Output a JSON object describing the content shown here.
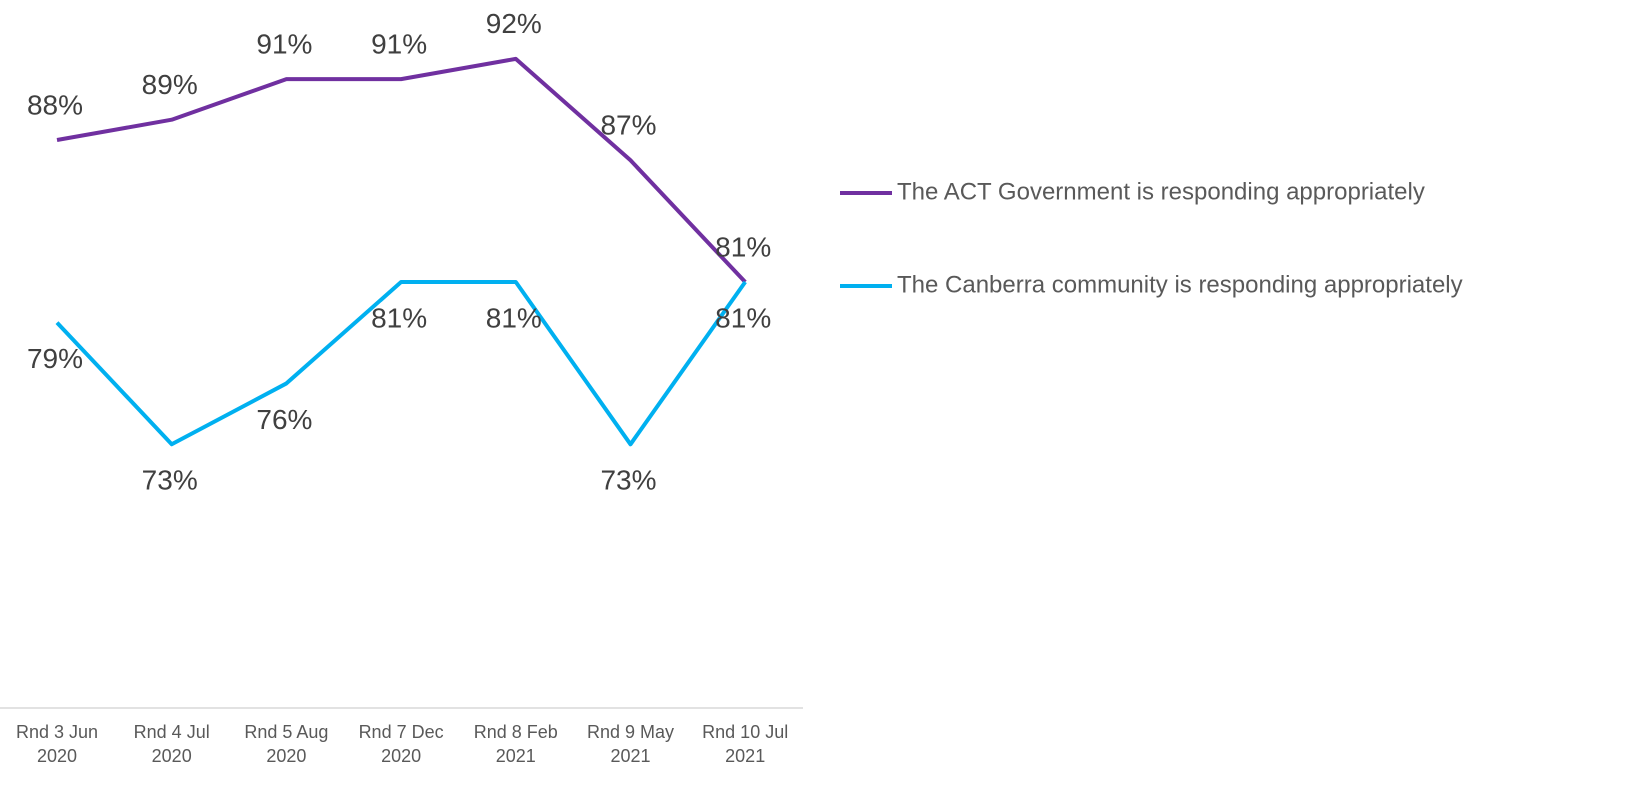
{
  "chart_data": {
    "type": "line",
    "categories": [
      "Rnd 3 Jun 2020",
      "Rnd 4 Jul 2020",
      "Rnd 5 Aug 2020",
      "Rnd 7 Dec 2020",
      "Rnd 8 Feb 2021",
      "Rnd 9 May 2021",
      "Rnd 10 Jul 2021"
    ],
    "series": [
      {
        "name": "The ACT Government is responding appropriately",
        "color": "#7030a0",
        "values": [
          88,
          89,
          91,
          91,
          92,
          87,
          81
        ],
        "value_labels": [
          "88%",
          "89%",
          "91%",
          "91%",
          "92%",
          "87%",
          "81%"
        ]
      },
      {
        "name": "The Canberra community is responding appropriately",
        "color": "#00b0f0",
        "values": [
          79,
          73,
          76,
          81,
          81,
          73,
          81
        ],
        "value_labels": [
          "79%",
          "73%",
          "76%",
          "81%",
          "81%",
          "73%",
          "81%"
        ]
      }
    ],
    "ylim": [
      60,
      95
    ],
    "legend": "right"
  }
}
